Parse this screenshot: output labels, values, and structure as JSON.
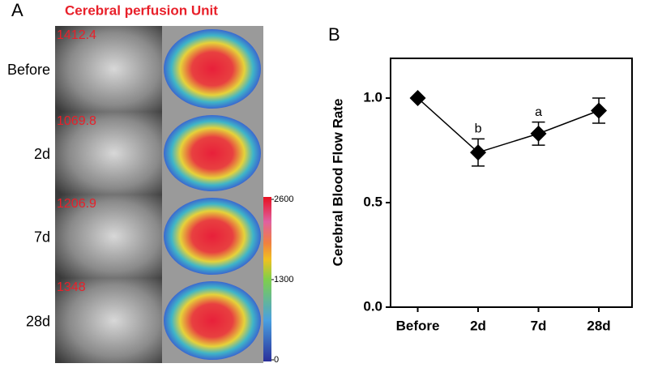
{
  "panel_a": {
    "label": "A",
    "title": "Cerebral perfusion Unit",
    "rows": [
      {
        "label": "Before",
        "value": 1412.4
      },
      {
        "label": "2d",
        "value": 1069.8
      },
      {
        "label": "7d",
        "value": 1206.9
      },
      {
        "label": "28d",
        "value": 1348
      }
    ],
    "colorbar_lim": [
      0,
      2600
    ],
    "colorbar_ticks": [
      2600,
      1300,
      0
    ]
  },
  "chart_data": {
    "type": "line",
    "panel_label": "B",
    "ylabel": "Cerebral Blood Flow Rate",
    "categories": [
      "Before",
      "2d",
      "7d",
      "28d"
    ],
    "values": [
      1.0,
      0.74,
      0.83,
      0.94
    ],
    "errors": [
      0,
      0.065,
      0.055,
      0.06
    ],
    "color": "#000000",
    "ylim": [
      0,
      1.19
    ],
    "yticks": [
      {
        "value": 0,
        "label": "0.0"
      },
      {
        "value": 0.5,
        "label": "0.5"
      },
      {
        "value": 1.0,
        "label": "1.0"
      }
    ],
    "annotations": [
      {
        "label": "b",
        "x": "2d"
      },
      {
        "label": "a",
        "x": "7d"
      }
    ]
  }
}
